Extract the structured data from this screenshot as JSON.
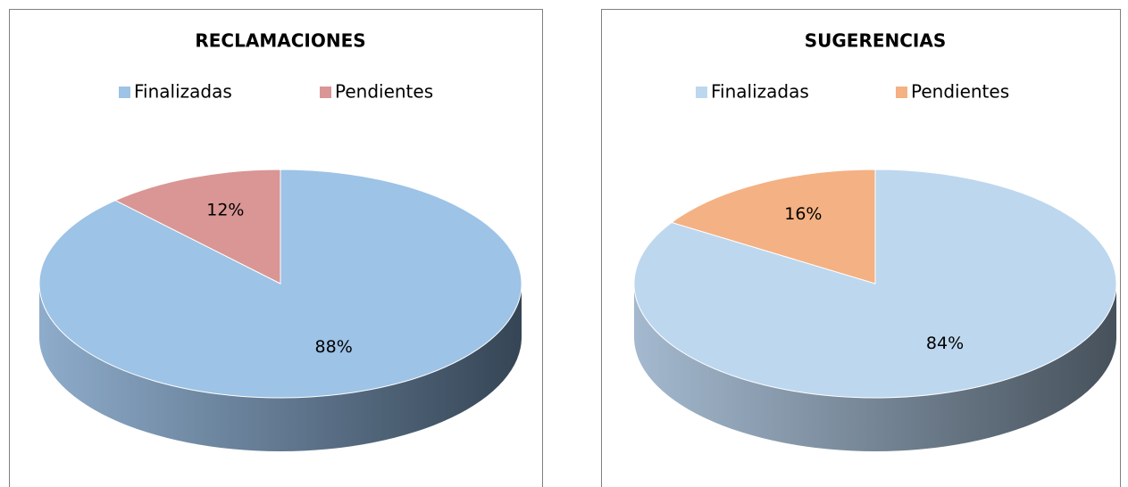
{
  "chart_data": [
    {
      "type": "pie",
      "title": "RECLAMACIONES",
      "categories": [
        "Finalizadas",
        "Pendientes"
      ],
      "values": [
        88,
        12
      ],
      "value_labels": [
        "88%",
        "12%"
      ],
      "colors": [
        "#9dc3e6",
        "#d99694"
      ],
      "legend": "top"
    },
    {
      "type": "pie",
      "title": "SUGERENCIAS",
      "categories": [
        "Finalizadas",
        "Pendientes"
      ],
      "values": [
        84,
        16
      ],
      "value_labels": [
        "84%",
        "16%"
      ],
      "colors": [
        "#bdd7ee",
        "#f4b183"
      ],
      "legend": "top"
    }
  ]
}
